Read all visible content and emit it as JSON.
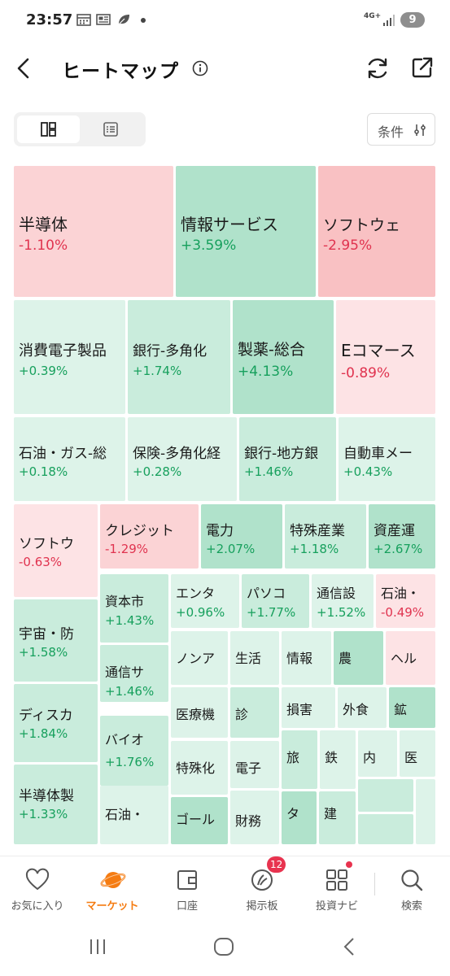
{
  "status_bar": {
    "time": "23:57",
    "network": "4G+",
    "battery": "9",
    "icons": [
      "calendar-icon",
      "news-icon",
      "leaf-icon"
    ]
  },
  "header": {
    "title": "ヒートマップ",
    "icons": [
      "back-arrow-icon",
      "info-icon",
      "refresh-icon",
      "share-icon"
    ]
  },
  "view_toggle": {
    "options": [
      "heatmap-view-icon",
      "list-view-icon"
    ],
    "selected": "heatmap-view-icon"
  },
  "filter": {
    "label": "条件"
  },
  "colors": {
    "up_strong": "#b0e2cb",
    "up_mid": "#c9ecdc",
    "up_light": "#ddf3e9",
    "down_strong": "#f9c1c3",
    "down_mid": "#fbd3d5",
    "down_light": "#fde3e5",
    "accent": "#f57c12"
  },
  "heatmap": [
    {
      "name": "半導体",
      "change": "-1.10%"
    },
    {
      "name": "情報サービス",
      "change": "+3.59%"
    },
    {
      "name": "ソフトウェ",
      "change": "-2.95%"
    },
    {
      "name": "消費電子製品",
      "change": "+0.39%"
    },
    {
      "name": "銀行-多角化",
      "change": "+1.74%"
    },
    {
      "name": "製薬-総合",
      "change": "+4.13%"
    },
    {
      "name": "Eコマース",
      "change": "-0.89%"
    },
    {
      "name": "石油・ガス-総",
      "change": "+0.18%"
    },
    {
      "name": "保険-多角化経",
      "change": "+0.28%"
    },
    {
      "name": "銀行-地方銀",
      "change": "+1.46%"
    },
    {
      "name": "自動車メー",
      "change": "+0.43%"
    },
    {
      "name": "ソフトウ",
      "change": "-0.63%"
    },
    {
      "name": "クレジット",
      "change": "-1.29%"
    },
    {
      "name": "電力",
      "change": "+2.07%"
    },
    {
      "name": "特殊産業",
      "change": "+1.18%"
    },
    {
      "name": "資産運",
      "change": "+2.67%"
    },
    {
      "name": "資本市",
      "change": "+1.43%"
    },
    {
      "name": "エンタ",
      "change": "+0.96%"
    },
    {
      "name": "パソコ",
      "change": "+1.77%"
    },
    {
      "name": "通信設",
      "change": "+1.52%"
    },
    {
      "name": "石油・",
      "change": "-0.49%"
    },
    {
      "name": "宇宙・防",
      "change": "+1.58%"
    },
    {
      "name": "通信サ",
      "change": "+1.46%"
    },
    {
      "name": "ディスカ",
      "change": "+1.84%"
    },
    {
      "name": "バイオ",
      "change": "+1.76%"
    },
    {
      "name": "半導体製",
      "change": "+1.33%"
    },
    {
      "name": "石油・",
      "change": ""
    },
    {
      "name": "ノンア",
      "change": ""
    },
    {
      "name": "生活",
      "change": ""
    },
    {
      "name": "情報",
      "change": ""
    },
    {
      "name": "農",
      "change": ""
    },
    {
      "name": "ヘル",
      "change": ""
    },
    {
      "name": "医療機",
      "change": ""
    },
    {
      "name": "診",
      "change": ""
    },
    {
      "name": "損害",
      "change": ""
    },
    {
      "name": "外食",
      "change": ""
    },
    {
      "name": "鉱",
      "change": ""
    },
    {
      "name": "特殊化",
      "change": ""
    },
    {
      "name": "電子",
      "change": ""
    },
    {
      "name": "旅",
      "change": ""
    },
    {
      "name": "鉄",
      "change": ""
    },
    {
      "name": "内",
      "change": ""
    },
    {
      "name": "医",
      "change": ""
    },
    {
      "name": "ゴール",
      "change": ""
    },
    {
      "name": "財務",
      "change": ""
    },
    {
      "name": "タ",
      "change": ""
    },
    {
      "name": "建",
      "change": ""
    },
    {
      "name": "",
      "change": ""
    },
    {
      "name": "",
      "change": ""
    },
    {
      "name": "",
      "change": ""
    }
  ],
  "bottom_nav": [
    {
      "label": "お気に入り",
      "icon": "heart-icon"
    },
    {
      "label": "マーケット",
      "icon": "planet-icon",
      "active": true
    },
    {
      "label": "口座",
      "icon": "wallet-icon"
    },
    {
      "label": "掲示板",
      "icon": "board-icon",
      "badge": "12"
    },
    {
      "label": "投資ナビ",
      "icon": "grid-icon",
      "dot": true
    },
    {
      "label": "検索",
      "icon": "search-icon"
    }
  ],
  "system_nav": [
    "recent-apps-icon",
    "home-icon",
    "back-icon"
  ]
}
